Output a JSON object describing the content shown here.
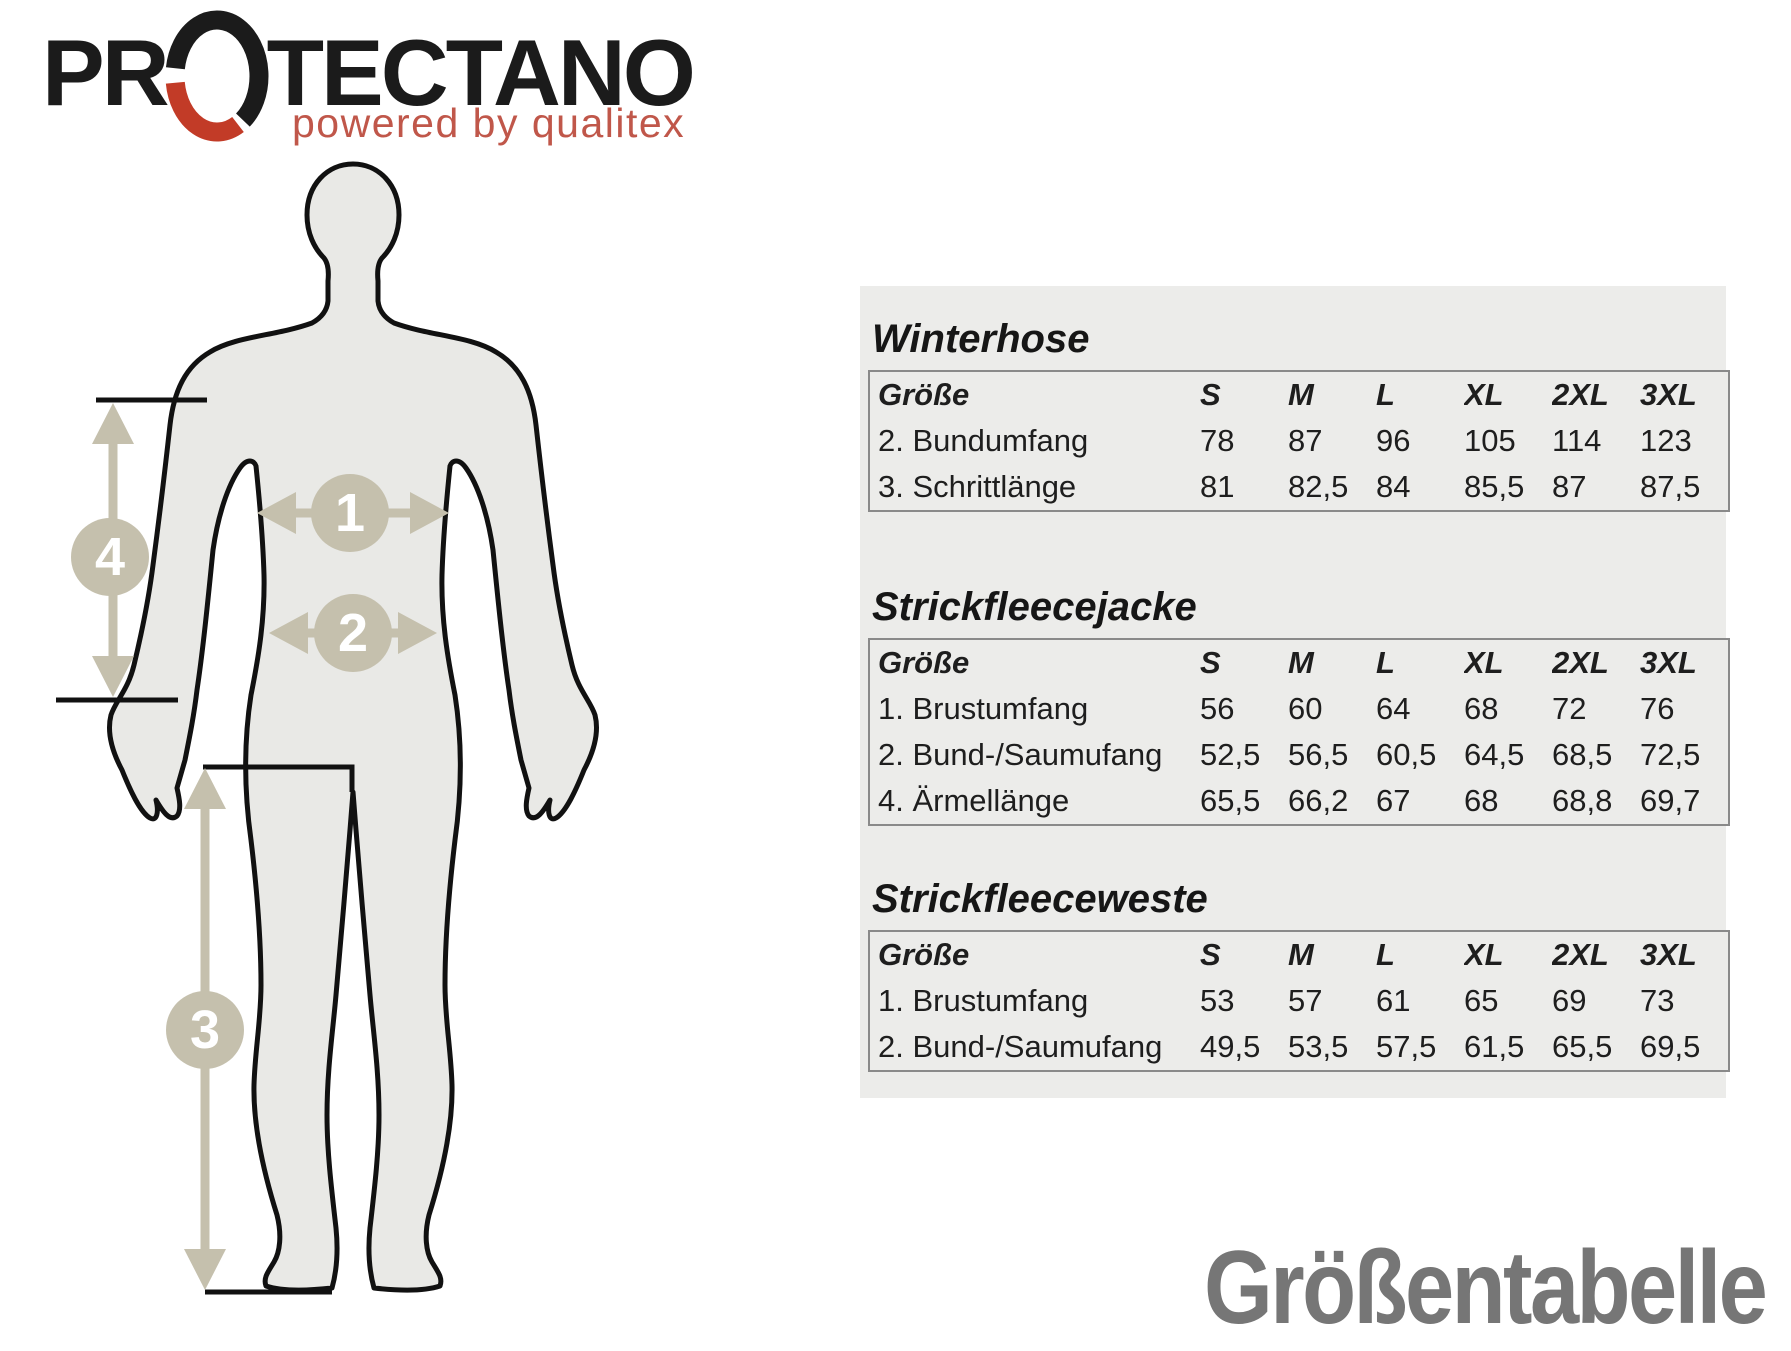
{
  "logo": {
    "brand_pre": "PR",
    "brand_post": "TECTANO",
    "tagline": "powered by qualitex"
  },
  "watermark_title": "Größentabelle",
  "figure": {
    "measurements": [
      "1",
      "2",
      "3",
      "4"
    ]
  },
  "tables": [
    {
      "title": "Winterhose",
      "header": [
        "Größe",
        "S",
        "M",
        "L",
        "XL",
        "2XL",
        "3XL"
      ],
      "rows": [
        [
          "2. Bundumfang",
          "78",
          "87",
          "96",
          "105",
          "114",
          "123"
        ],
        [
          "3. Schrittlänge",
          "81",
          "82,5",
          "84",
          "85,5",
          "87",
          "87,5"
        ]
      ]
    },
    {
      "title": "Strickfleecejacke",
      "header": [
        "Größe",
        "S",
        "M",
        "L",
        "XL",
        "2XL",
        "3XL"
      ],
      "rows": [
        [
          "1. Brustumfang",
          "56",
          "60",
          "64",
          "68",
          "72",
          "76"
        ],
        [
          "2. Bund-/Saumufang",
          "52,5",
          "56,5",
          "60,5",
          "64,5",
          "68,5",
          "72,5"
        ],
        [
          "4. Ärmellänge",
          "65,5",
          "66,2",
          "67",
          "68",
          "68,8",
          "69,7"
        ]
      ]
    },
    {
      "title": "Strickfleeceweste",
      "header": [
        "Größe",
        "S",
        "M",
        "L",
        "XL",
        "2XL",
        "3XL"
      ],
      "rows": [
        [
          "1. Brustumfang",
          "53",
          "57",
          "61",
          "65",
          "69",
          "73"
        ],
        [
          "2. Bund-/Saumufang",
          "49,5",
          "53,5",
          "57,5",
          "61,5",
          "65,5",
          "69,5"
        ]
      ]
    }
  ],
  "colors": {
    "brand_black": "#1b1b1b",
    "brand_red": "#c23b27",
    "tagline_red": "#c0574a",
    "panel_gray": "#ececea",
    "marker_beige": "#c5c0ad",
    "watermark_gray": "#767676"
  }
}
